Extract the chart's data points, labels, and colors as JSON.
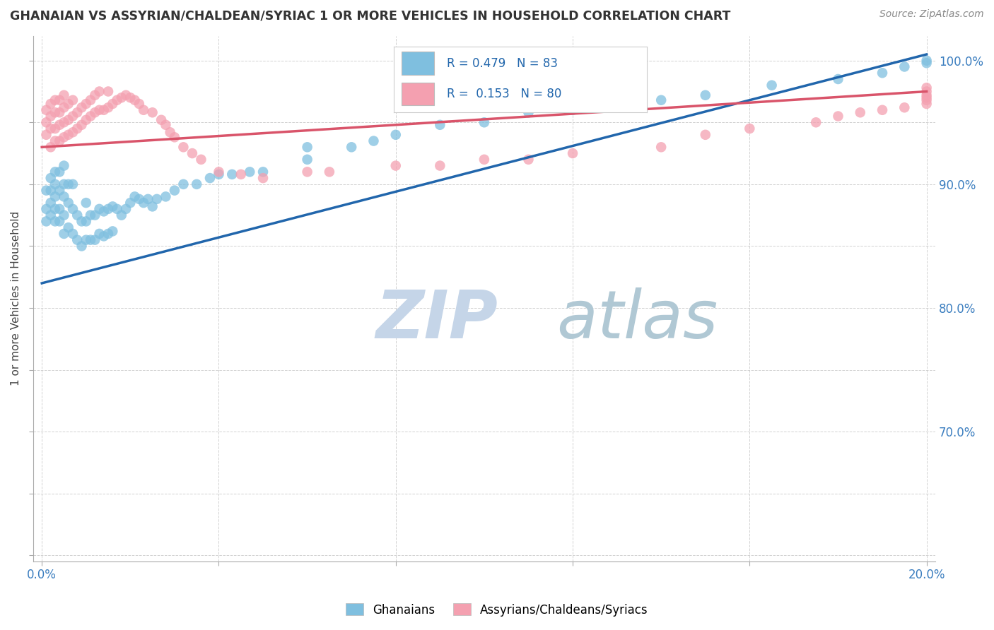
{
  "title": "GHANAIAN VS ASSYRIAN/CHALDEAN/SYRIAC 1 OR MORE VEHICLES IN HOUSEHOLD CORRELATION CHART",
  "source": "Source: ZipAtlas.com",
  "ylabel": "1 or more Vehicles in Household",
  "legend_label1": "Ghanaians",
  "legend_label2": "Assyrians/Chaldeans/Syriacs",
  "blue_color": "#7fbfdf",
  "pink_color": "#f4a0b0",
  "blue_line_color": "#2166ac",
  "pink_line_color": "#d9546a",
  "watermark_zip": "ZIP",
  "watermark_atlas": "atlas",
  "watermark_color_zip": "#c5d5e8",
  "watermark_color_atlas": "#b0c8d4",
  "blue_line_x0": 0.0,
  "blue_line_y0": 0.82,
  "blue_line_x1": 0.2,
  "blue_line_y1": 1.005,
  "pink_line_x0": 0.0,
  "pink_line_y0": 0.93,
  "pink_line_x1": 0.2,
  "pink_line_y1": 0.975,
  "xmin": -0.002,
  "xmax": 0.202,
  "ymin": 0.595,
  "ymax": 1.02,
  "x_tick_positions": [
    0.0,
    0.04,
    0.08,
    0.12,
    0.16,
    0.2
  ],
  "x_tick_labels": [
    "0.0%",
    "",
    "",
    "",
    "",
    "20.0%"
  ],
  "y_ticks_right": [
    0.7,
    0.8,
    0.9,
    1.0
  ],
  "y_tick_labels_right": [
    "70.0%",
    "80.0%",
    "90.0%",
    "100.0%"
  ],
  "legend_r1": "R = 0.479",
  "legend_n1": "N = 83",
  "legend_r2": "R =  0.153",
  "legend_n2": "N = 80",
  "blue_x": [
    0.001,
    0.001,
    0.001,
    0.002,
    0.002,
    0.002,
    0.002,
    0.003,
    0.003,
    0.003,
    0.003,
    0.003,
    0.004,
    0.004,
    0.004,
    0.004,
    0.005,
    0.005,
    0.005,
    0.005,
    0.005,
    0.006,
    0.006,
    0.006,
    0.007,
    0.007,
    0.007,
    0.008,
    0.008,
    0.009,
    0.009,
    0.01,
    0.01,
    0.01,
    0.011,
    0.011,
    0.012,
    0.012,
    0.013,
    0.013,
    0.014,
    0.014,
    0.015,
    0.015,
    0.016,
    0.016,
    0.017,
    0.018,
    0.019,
    0.02,
    0.021,
    0.022,
    0.023,
    0.024,
    0.025,
    0.026,
    0.028,
    0.03,
    0.032,
    0.035,
    0.038,
    0.04,
    0.043,
    0.047,
    0.05,
    0.06,
    0.06,
    0.07,
    0.075,
    0.08,
    0.09,
    0.1,
    0.11,
    0.12,
    0.13,
    0.14,
    0.15,
    0.165,
    0.18,
    0.19,
    0.195,
    0.2,
    0.2
  ],
  "blue_y": [
    0.87,
    0.88,
    0.895,
    0.875,
    0.885,
    0.895,
    0.905,
    0.87,
    0.88,
    0.89,
    0.9,
    0.91,
    0.87,
    0.88,
    0.895,
    0.91,
    0.86,
    0.875,
    0.89,
    0.9,
    0.915,
    0.865,
    0.885,
    0.9,
    0.86,
    0.88,
    0.9,
    0.855,
    0.875,
    0.85,
    0.87,
    0.855,
    0.87,
    0.885,
    0.855,
    0.875,
    0.855,
    0.875,
    0.86,
    0.88,
    0.858,
    0.878,
    0.86,
    0.88,
    0.862,
    0.882,
    0.88,
    0.875,
    0.88,
    0.885,
    0.89,
    0.888,
    0.885,
    0.888,
    0.882,
    0.888,
    0.89,
    0.895,
    0.9,
    0.9,
    0.905,
    0.908,
    0.908,
    0.91,
    0.91,
    0.92,
    0.93,
    0.93,
    0.935,
    0.94,
    0.948,
    0.95,
    0.958,
    0.96,
    0.965,
    0.968,
    0.972,
    0.98,
    0.985,
    0.99,
    0.995,
    0.998,
    1.0
  ],
  "pink_x": [
    0.001,
    0.001,
    0.001,
    0.002,
    0.002,
    0.002,
    0.002,
    0.003,
    0.003,
    0.003,
    0.003,
    0.004,
    0.004,
    0.004,
    0.004,
    0.005,
    0.005,
    0.005,
    0.005,
    0.006,
    0.006,
    0.006,
    0.007,
    0.007,
    0.007,
    0.008,
    0.008,
    0.009,
    0.009,
    0.01,
    0.01,
    0.011,
    0.011,
    0.012,
    0.012,
    0.013,
    0.013,
    0.014,
    0.015,
    0.015,
    0.016,
    0.017,
    0.018,
    0.019,
    0.02,
    0.021,
    0.022,
    0.023,
    0.025,
    0.027,
    0.028,
    0.029,
    0.03,
    0.032,
    0.034,
    0.036,
    0.04,
    0.045,
    0.05,
    0.06,
    0.065,
    0.08,
    0.09,
    0.1,
    0.11,
    0.12,
    0.14,
    0.15,
    0.16,
    0.175,
    0.18,
    0.185,
    0.19,
    0.195,
    0.2,
    0.2,
    0.2,
    0.2,
    0.2,
    0.2
  ],
  "pink_y": [
    0.94,
    0.95,
    0.96,
    0.93,
    0.945,
    0.955,
    0.965,
    0.935,
    0.945,
    0.958,
    0.968,
    0.935,
    0.948,
    0.958,
    0.968,
    0.938,
    0.95,
    0.962,
    0.972,
    0.94,
    0.952,
    0.965,
    0.942,
    0.955,
    0.968,
    0.945,
    0.958,
    0.948,
    0.962,
    0.952,
    0.965,
    0.955,
    0.968,
    0.958,
    0.972,
    0.96,
    0.975,
    0.96,
    0.962,
    0.975,
    0.965,
    0.968,
    0.97,
    0.972,
    0.97,
    0.968,
    0.965,
    0.96,
    0.958,
    0.952,
    0.948,
    0.942,
    0.938,
    0.93,
    0.925,
    0.92,
    0.91,
    0.908,
    0.905,
    0.91,
    0.91,
    0.915,
    0.915,
    0.92,
    0.92,
    0.925,
    0.93,
    0.94,
    0.945,
    0.95,
    0.955,
    0.958,
    0.96,
    0.962,
    0.965,
    0.968,
    0.97,
    0.972,
    0.975,
    0.978
  ]
}
